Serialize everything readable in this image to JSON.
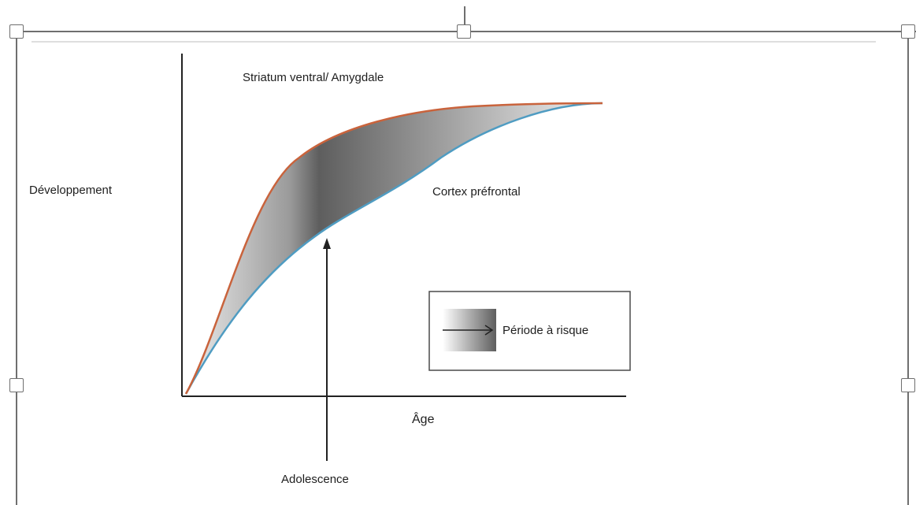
{
  "diagram": {
    "labels": {
      "top_curve": "Striatum ventral/ Amygdale",
      "y_axis": "Développement",
      "bottom_curve": "Cortex préfrontal",
      "x_axis": "Âge",
      "arrow": "Adolescence",
      "legend": "Période à risque"
    }
  },
  "colors": {
    "top_curve": "#c9633c",
    "bottom_curve": "#4f9cc2",
    "axis": "#222222",
    "frame": "#6f6f6f",
    "shade_dark": "#5e5e5e",
    "shade_light": "#ececec"
  },
  "icons": {
    "legend_arrow": "right-arrow-icon",
    "arrow": "up-arrow-icon"
  }
}
